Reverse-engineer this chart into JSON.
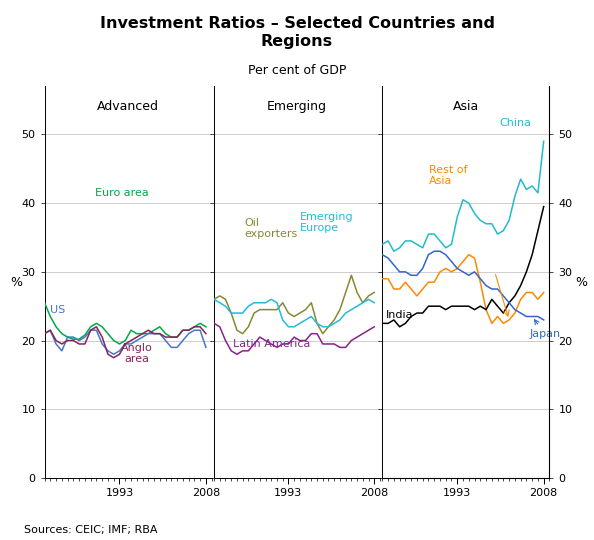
{
  "title": "Investment Ratios – Selected Countries and\nRegions",
  "subtitle": "Per cent of GDP",
  "source": "Sources: CEIC; IMF; RBA",
  "ylim": [
    0,
    57
  ],
  "yticks": [
    0,
    10,
    20,
    30,
    40,
    50
  ],
  "colors": {
    "euro_area": "#00AA44",
    "us": "#4477CC",
    "anglo_area": "#882255",
    "oil_exporters": "#888833",
    "emerging_europe": "#22BBDD",
    "latin_america": "#882288",
    "china": "#22BBCC",
    "rest_of_asia": "#FF8800",
    "india": "#000000",
    "japan": "#3366CC"
  },
  "years": [
    1980,
    1981,
    1982,
    1983,
    1984,
    1985,
    1986,
    1987,
    1988,
    1989,
    1990,
    1991,
    1992,
    1993,
    1994,
    1995,
    1996,
    1997,
    1998,
    1999,
    2000,
    2001,
    2002,
    2003,
    2004,
    2005,
    2006,
    2007,
    2008
  ],
  "euro_area": [
    25.5,
    23.5,
    22.0,
    21.0,
    20.5,
    20.2,
    20.2,
    20.8,
    22.0,
    22.5,
    22.0,
    21.0,
    20.0,
    19.5,
    20.0,
    21.5,
    21.0,
    21.0,
    21.0,
    21.5,
    22.0,
    21.0,
    20.5,
    20.5,
    21.5,
    21.5,
    22.0,
    22.5,
    22.0
  ],
  "us": [
    21.0,
    21.5,
    19.5,
    18.5,
    20.5,
    20.5,
    20.0,
    20.5,
    21.5,
    21.5,
    19.5,
    18.5,
    18.0,
    18.5,
    19.5,
    19.5,
    20.0,
    20.5,
    21.0,
    21.0,
    21.0,
    20.0,
    19.0,
    19.0,
    20.0,
    21.0,
    21.5,
    21.5,
    19.0
  ],
  "anglo_area": [
    21.0,
    21.5,
    20.0,
    19.5,
    20.0,
    20.0,
    19.5,
    19.5,
    21.5,
    22.0,
    20.5,
    18.0,
    17.5,
    18.0,
    19.5,
    20.0,
    20.5,
    21.0,
    21.5,
    21.0,
    21.0,
    20.5,
    20.5,
    20.5,
    21.5,
    21.5,
    22.0,
    22.0,
    21.0
  ],
  "oil_exporters": [
    26.0,
    26.5,
    26.0,
    24.0,
    21.5,
    21.0,
    22.0,
    24.0,
    24.5,
    24.5,
    24.5,
    24.5,
    25.5,
    24.0,
    23.5,
    24.0,
    24.5,
    25.5,
    22.5,
    21.0,
    22.0,
    23.0,
    24.5,
    27.0,
    29.5,
    27.0,
    25.5,
    26.5,
    27.0
  ],
  "emerging_europe": [
    26.0,
    25.5,
    25.0,
    24.0,
    24.0,
    24.0,
    25.0,
    25.5,
    25.5,
    25.5,
    26.0,
    25.5,
    23.0,
    22.0,
    22.0,
    22.5,
    23.0,
    23.5,
    22.5,
    22.0,
    22.0,
    22.5,
    23.0,
    24.0,
    24.5,
    25.0,
    25.5,
    26.0,
    25.5
  ],
  "latin_america": [
    22.5,
    22.0,
    20.0,
    18.5,
    18.0,
    18.5,
    18.5,
    19.5,
    20.5,
    20.0,
    19.5,
    19.0,
    19.5,
    19.5,
    20.5,
    20.0,
    20.0,
    21.0,
    21.0,
    19.5,
    19.5,
    19.5,
    19.0,
    19.0,
    20.0,
    20.5,
    21.0,
    21.5,
    22.0
  ],
  "china": [
    34.0,
    34.5,
    33.0,
    33.5,
    34.5,
    34.5,
    34.0,
    33.5,
    35.5,
    35.5,
    34.5,
    33.5,
    34.0,
    38.0,
    40.5,
    40.0,
    38.5,
    37.5,
    37.0,
    37.0,
    35.5,
    36.0,
    37.5,
    41.0,
    43.5,
    42.0,
    42.5,
    41.5,
    49.0
  ],
  "rest_of_asia": [
    29.0,
    29.0,
    27.5,
    27.5,
    28.5,
    27.5,
    26.5,
    27.5,
    28.5,
    28.5,
    30.0,
    30.5,
    30.0,
    30.5,
    31.5,
    32.5,
    32.0,
    28.5,
    24.5,
    22.5,
    23.5,
    22.5,
    23.0,
    24.0,
    26.0,
    27.0,
    27.0,
    26.0,
    27.0
  ],
  "india": [
    22.5,
    22.5,
    23.0,
    22.0,
    22.5,
    23.5,
    24.0,
    24.0,
    25.0,
    25.0,
    25.0,
    24.5,
    25.0,
    25.0,
    25.0,
    25.0,
    24.5,
    25.0,
    24.5,
    26.0,
    25.0,
    24.0,
    25.5,
    26.5,
    28.0,
    30.0,
    32.5,
    36.0,
    39.5
  ],
  "japan": [
    32.5,
    32.0,
    31.0,
    30.0,
    30.0,
    29.5,
    29.5,
    30.5,
    32.5,
    33.0,
    33.0,
    32.5,
    31.5,
    30.5,
    30.0,
    29.5,
    30.0,
    29.0,
    28.0,
    27.5,
    27.5,
    26.5,
    25.5,
    24.5,
    24.0,
    23.5,
    23.5,
    23.5,
    23.0
  ]
}
